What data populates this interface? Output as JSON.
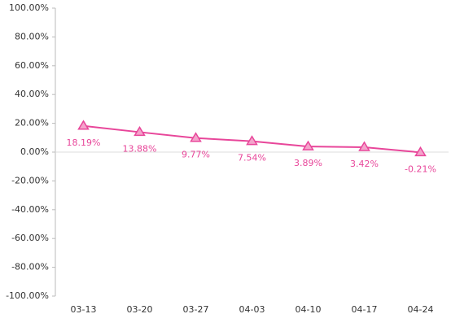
{
  "chart_data": {
    "type": "line",
    "categories": [
      "03-13",
      "03-20",
      "03-27",
      "04-03",
      "04-10",
      "04-17",
      "04-24"
    ],
    "series": [
      {
        "color": "#e8469a",
        "values": [
          18.19,
          13.88,
          9.77,
          7.54,
          3.89,
          3.42,
          -0.21
        ],
        "value_labels": [
          "18.19%",
          "13.88%",
          "9.77%",
          "7.54%",
          "3.89%",
          "3.42%",
          "-0.21%"
        ]
      }
    ],
    "ylim": [
      -100,
      100
    ],
    "yticks": [
      {
        "value": -100,
        "label": "-100.00%"
      },
      {
        "value": -80,
        "label": "-80.00%"
      },
      {
        "value": -60,
        "label": "-60.00%"
      },
      {
        "value": -40,
        "label": "-40.00%"
      },
      {
        "value": -20,
        "label": "-20.00%"
      },
      {
        "value": 0,
        "label": "0.00%"
      },
      {
        "value": 20,
        "label": "20.00%"
      },
      {
        "value": 40,
        "label": "40.00%"
      },
      {
        "value": 60,
        "label": "60.00%"
      },
      {
        "value": 80,
        "label": "80.00%"
      },
      {
        "value": 100,
        "label": "100.00%"
      }
    ],
    "grid": false
  }
}
